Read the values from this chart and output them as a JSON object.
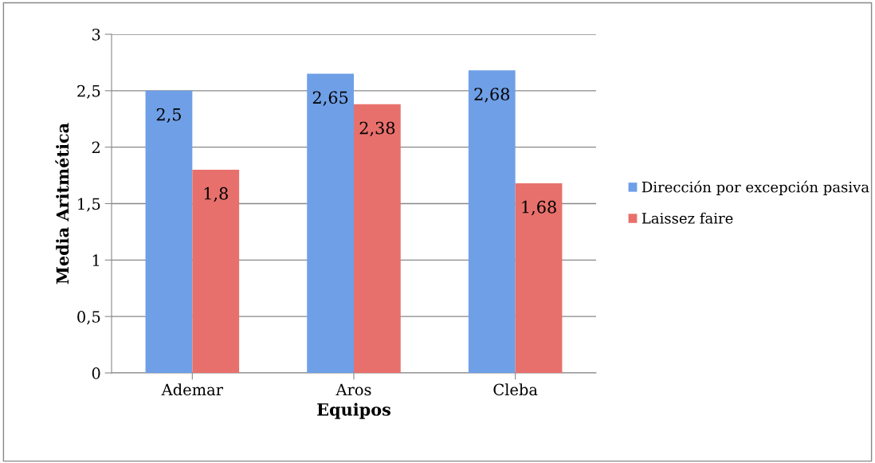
{
  "chart_data": {
    "type": "bar",
    "xlabel": "Equipos",
    "ylabel": "Media Aritmética",
    "categories": [
      "Ademar",
      "Aros",
      "Cleba"
    ],
    "series": [
      {
        "name": "Dirección por excepción pasiva",
        "color": "#6f9fe6",
        "values": [
          2.5,
          2.65,
          2.68
        ],
        "value_labels": [
          "2,5",
          "2,65",
          "2,68"
        ]
      },
      {
        "name": "Laissez faire",
        "color": "#e8706c",
        "values": [
          1.8,
          2.38,
          1.68
        ],
        "value_labels": [
          "1,8",
          "2,38",
          "1,68"
        ]
      }
    ],
    "ylim": [
      0,
      3
    ],
    "yticks": [
      0,
      {
        "value": 0.5,
        "label": "0,5"
      },
      1,
      {
        "value": 1.5,
        "label": "1,5"
      },
      2,
      {
        "value": 2.5,
        "label": "2,5"
      },
      3
    ],
    "grid": "y",
    "legend": "right"
  }
}
